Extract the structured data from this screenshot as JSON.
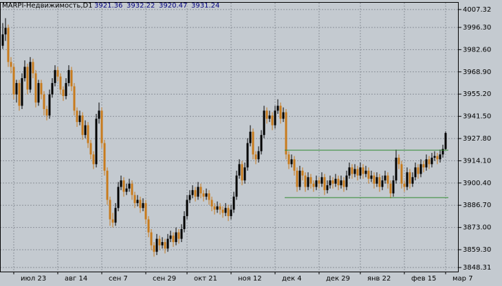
{
  "chart_data": {
    "type": "candlestick",
    "title": "MARPI-Недвижимость,D1",
    "categories": [
      null,
      null,
      null,
      null,
      "июл 23",
      null,
      null,
      null,
      null,
      null,
      null,
      null,
      null,
      null,
      null,
      null,
      null,
      null,
      null,
      null,
      "авг 14",
      null,
      null,
      null,
      null,
      null,
      null,
      null,
      null,
      null,
      null,
      null,
      null,
      null,
      null,
      null,
      "сен 7",
      null,
      null,
      null,
      null,
      null,
      null,
      null,
      null,
      null,
      null,
      null,
      null,
      null,
      null,
      null,
      "сен 29",
      null,
      null,
      null,
      null,
      null,
      null,
      null,
      null,
      null,
      null,
      null,
      null,
      null,
      null,
      "окт 21",
      null,
      null,
      null,
      null,
      null,
      null,
      null,
      null,
      null,
      null,
      null,
      null,
      null,
      null,
      null,
      "ноя 12",
      null,
      null,
      null,
      null,
      null,
      null,
      null,
      null,
      null,
      null,
      null,
      null,
      null,
      null,
      null,
      "дек 4",
      null,
      null,
      null,
      null,
      null,
      null,
      null,
      null,
      null,
      null,
      null,
      null,
      null,
      null,
      null,
      "дек 29",
      null,
      null,
      null,
      null,
      null,
      null,
      null,
      null,
      null,
      null,
      null,
      null,
      null,
      null,
      "янв 22",
      null,
      null,
      null,
      null,
      null,
      null,
      null,
      null,
      null,
      null,
      null,
      null,
      null,
      null,
      null,
      "фев 15",
      null,
      null,
      null,
      null,
      null,
      null,
      null,
      null,
      null,
      null,
      null,
      null,
      null,
      null,
      "мар 7"
    ],
    "open": [
      3985,
      3992,
      3996,
      3975,
      3972,
      3955,
      3962,
      3948,
      3965,
      3972,
      3958,
      3975,
      3968,
      3950,
      3962,
      3955,
      3946,
      3942,
      3955,
      3962,
      3970,
      3966,
      3958,
      3954,
      3962,
      3970,
      3960,
      3945,
      3938,
      3942,
      3930,
      3936,
      3925,
      3918,
      3912,
      3940,
      3945,
      3925,
      3908,
      3890,
      3878,
      3876,
      3885,
      3898,
      3902,
      3895,
      3897,
      3900,
      3893,
      3888,
      3890,
      3885,
      3888,
      3878,
      3870,
      3862,
      3858,
      3866,
      3862,
      3864,
      3860,
      3866,
      3868,
      3864,
      3870,
      3866,
      3872,
      3880,
      3890,
      3893,
      3896,
      3892,
      3898,
      3894,
      3892,
      3894,
      3890,
      3886,
      3884,
      3886,
      3884,
      3882,
      3885,
      3880,
      3884,
      3892,
      3905,
      3912,
      3902,
      3910,
      3925,
      3932,
      3918,
      3915,
      3920,
      3930,
      3945,
      3940,
      3942,
      3936,
      3945,
      3948,
      3940,
      3944,
      3918,
      3912,
      3915,
      3908,
      3898,
      3908,
      3905,
      3898,
      3904,
      3900,
      3898,
      3902,
      3900,
      3904,
      3896,
      3899,
      3902,
      3900,
      3903,
      3899,
      3902,
      3898,
      3905,
      3910,
      3906,
      3909,
      3905,
      3910,
      3906,
      3908,
      3903,
      3905,
      3900,
      3904,
      3898,
      3902,
      3905,
      3900,
      3894,
      3902,
      3916,
      3912,
      3900,
      3898,
      3907,
      3900,
      3904,
      3910,
      3906,
      3912,
      3910,
      3915,
      3912,
      3916,
      3917,
      3915,
      3918,
      3921.36
    ],
    "high": [
      3999,
      4002,
      3998,
      3978,
      3974,
      3964,
      3964,
      3968,
      3976,
      3974,
      3978,
      3977,
      3970,
      3964,
      3964,
      3957,
      3948,
      3958,
      3965,
      3973,
      3972,
      3968,
      3960,
      3965,
      3973,
      3972,
      3962,
      3947,
      3945,
      3944,
      3939,
      3938,
      3927,
      3920,
      3943,
      3950,
      3947,
      3927,
      3910,
      3892,
      3882,
      3888,
      3901,
      3905,
      3904,
      3900,
      3903,
      3902,
      3895,
      3893,
      3892,
      3891,
      3890,
      3880,
      3872,
      3864,
      3869,
      3868,
      3867,
      3866,
      3869,
      3871,
      3870,
      3873,
      3872,
      3875,
      3883,
      3893,
      3896,
      3899,
      3898,
      3901,
      3900,
      3896,
      3897,
      3896,
      3892,
      3888,
      3889,
      3888,
      3886,
      3888,
      3887,
      3887,
      3895,
      3908,
      3915,
      3914,
      3913,
      3928,
      3936,
      3934,
      3920,
      3923,
      3933,
      3948,
      3947,
      3945,
      3944,
      3948,
      3952,
      3950,
      3947,
      3946,
      3920,
      3918,
      3917,
      3910,
      3911,
      3910,
      3907,
      3907,
      3906,
      3902,
      3905,
      3904,
      3907,
      3906,
      3902,
      3905,
      3904,
      3906,
      3905,
      3905,
      3904,
      3908,
      3913,
      3912,
      3912,
      3911,
      3913,
      3912,
      3911,
      3910,
      3908,
      3907,
      3907,
      3906,
      3905,
      3908,
      3907,
      3902,
      3905,
      3921,
      3918,
      3914,
      3902,
      3910,
      3909,
      3907,
      3913,
      3912,
      3915,
      3914,
      3918,
      3917,
      3919,
      3920,
      3919,
      3921,
      3924,
      3932.22
    ],
    "low": [
      3983,
      3988,
      3972,
      3968,
      3952,
      3950,
      3945,
      3946,
      3963,
      3955,
      3956,
      3965,
      3947,
      3948,
      3952,
      3942,
      3939,
      3940,
      3953,
      3960,
      3963,
      3955,
      3951,
      3952,
      3960,
      3957,
      3942,
      3935,
      3936,
      3927,
      3928,
      3922,
      3915,
      3909,
      3910,
      3937,
      3922,
      3905,
      3887,
      3874,
      3873,
      3874,
      3883,
      3896,
      3892,
      3893,
      3895,
      3890,
      3885,
      3886,
      3882,
      3883,
      3875,
      3867,
      3859,
      3855,
      3856,
      3859,
      3860,
      3857,
      3858,
      3864,
      3861,
      3862,
      3863,
      3864,
      3870,
      3878,
      3888,
      3891,
      3889,
      3890,
      3891,
      3889,
      3890,
      3887,
      3883,
      3881,
      3882,
      3881,
      3879,
      3880,
      3877,
      3878,
      3882,
      3890,
      3903,
      3899,
      3900,
      3908,
      3923,
      3915,
      3912,
      3913,
      3918,
      3928,
      3937,
      3938,
      3933,
      3934,
      3943,
      3937,
      3938,
      3915,
      3909,
      3910,
      3905,
      3895,
      3896,
      3902,
      3895,
      3896,
      3897,
      3895,
      3896,
      3897,
      3898,
      3893,
      3894,
      3897,
      3897,
      3898,
      3896,
      3897,
      3895,
      3896,
      3903,
      3903,
      3904,
      3902,
      3903,
      3903,
      3904,
      3900,
      3901,
      3897,
      3898,
      3895,
      3896,
      3900,
      3897,
      3891,
      3892,
      3900,
      3909,
      3897,
      3895,
      3896,
      3897,
      3898,
      3902,
      3903,
      3904,
      3907,
      3908,
      3909,
      3910,
      3914,
      3912,
      3913,
      3916,
      3920.47
    ],
    "close": [
      3992,
      3996,
      3975,
      3972,
      3955,
      3962,
      3948,
      3965,
      3972,
      3958,
      3975,
      3968,
      3950,
      3962,
      3955,
      3946,
      3942,
      3955,
      3962,
      3970,
      3966,
      3958,
      3954,
      3962,
      3970,
      3960,
      3945,
      3938,
      3942,
      3930,
      3936,
      3925,
      3918,
      3912,
      3940,
      3945,
      3925,
      3908,
      3890,
      3878,
      3876,
      3885,
      3898,
      3902,
      3895,
      3897,
      3900,
      3893,
      3888,
      3890,
      3885,
      3888,
      3878,
      3870,
      3862,
      3858,
      3866,
      3862,
      3864,
      3860,
      3866,
      3868,
      3864,
      3870,
      3866,
      3872,
      3880,
      3890,
      3893,
      3896,
      3892,
      3898,
      3894,
      3892,
      3894,
      3890,
      3886,
      3884,
      3886,
      3884,
      3882,
      3885,
      3880,
      3884,
      3892,
      3905,
      3912,
      3902,
      3910,
      3925,
      3932,
      3918,
      3915,
      3920,
      3930,
      3945,
      3940,
      3942,
      3936,
      3945,
      3948,
      3940,
      3944,
      3918,
      3912,
      3915,
      3908,
      3898,
      3908,
      3905,
      3898,
      3904,
      3900,
      3898,
      3902,
      3900,
      3904,
      3896,
      3899,
      3902,
      3900,
      3903,
      3899,
      3902,
      3898,
      3905,
      3910,
      3906,
      3909,
      3905,
      3910,
      3906,
      3908,
      3903,
      3905,
      3900,
      3904,
      3898,
      3902,
      3905,
      3900,
      3894,
      3902,
      3916,
      3912,
      3900,
      3898,
      3907,
      3900,
      3904,
      3910,
      3906,
      3912,
      3910,
      3915,
      3912,
      3916,
      3917,
      3915,
      3918,
      3921.4,
      3931.24
    ],
    "up_color": "#000000",
    "down_color": "#c87b1c",
    "hlines": [
      {
        "value": 3920.6,
        "from": 103,
        "to": 161,
        "color": "#2e8b2e"
      },
      {
        "value": 3891.4,
        "from": 103,
        "to": 161,
        "color": "#2e8b2e"
      }
    ],
    "ylim": [
      3845.8,
      4011.5
    ],
    "yticks": [
      {
        "value": 4007.32,
        "label": "4007.32"
      },
      {
        "value": 3996.3,
        "label": "3996.30"
      },
      {
        "value": 3982.6,
        "label": "3982.60"
      },
      {
        "value": 3968.9,
        "label": "3968.90"
      },
      {
        "value": 3955.2,
        "label": "3955.20"
      },
      {
        "value": 3941.5,
        "label": "3941.50"
      },
      {
        "value": 3927.8,
        "label": "3927.80"
      },
      {
        "value": 3914.1,
        "label": "3914.10"
      },
      {
        "value": 3900.4,
        "label": "3900.40"
      },
      {
        "value": 3886.7,
        "label": "3886.70"
      },
      {
        "value": 3873,
        "label": "3873.00"
      },
      {
        "value": 3859.3,
        "label": "3859.30"
      },
      {
        "value": 3848.31,
        "label": "3848.31"
      }
    ],
    "grid": true
  }
}
